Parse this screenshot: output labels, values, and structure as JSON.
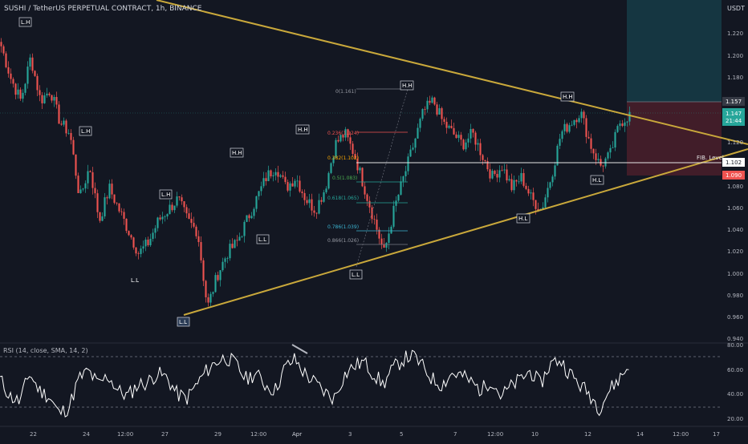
{
  "header": {
    "title": "SUSHI / TetherUS PERPETUAL CONTRACT, 1h, BINANCE",
    "currency": "USDT"
  },
  "price_axis": {
    "ticks": [
      "1.220",
      "1.200",
      "1.180",
      "1.157",
      "1.147",
      "21:44",
      "1.120",
      "1.102",
      "1.090",
      "1.080",
      "1.060",
      "1.040",
      "1.020",
      "1.000",
      "0.980",
      "0.960",
      "0.940"
    ]
  },
  "price_labels": {
    "top": "1.157",
    "current": "1.147",
    "countdown": "21:44",
    "fib_line": "1.102",
    "stop": "1.090"
  },
  "time_axis": {
    "labels": [
      "22",
      "24",
      "12:00",
      "27",
      "29",
      "12:00",
      "Apr",
      "3",
      "5",
      "7",
      "12:00",
      "10",
      "12",
      "14",
      "12:00",
      "17"
    ]
  },
  "pivot_labels": [
    "L.H",
    "L.H",
    "L.H",
    "H.H",
    "H.H",
    "H.H",
    "H.H",
    "L.L",
    "L.L",
    "H.L",
    "L.L",
    "H.L",
    "H.L",
    "L.L"
  ],
  "fib_labels": [
    "0(1.161)",
    "0.236(1.124)",
    "0.382(1.102)",
    "0.5(1.083)",
    "0.618(1.065)",
    "0.786(1.039)",
    "0.866(1.026)"
  ],
  "fib_level_text": "FIB. Level",
  "rsi": {
    "title": "RSI (14, close, SMA, 14, 2)",
    "ticks": [
      "80.00",
      "60.00",
      "40.00",
      "20.00"
    ]
  },
  "colors": {
    "background": "#131722",
    "candle_up": "#26a69a",
    "candle_down": "#ef5350",
    "trendline": "#c9a83b",
    "rsi_line": "#ffffff",
    "target_zone": "#163a45",
    "stop_zone": "#4a1f2a"
  },
  "chart_data": {
    "type": "candlestick",
    "title": "SUSHI / TetherUS PERPETUAL CONTRACT, 1h, BINANCE",
    "ylim": [
      0.94,
      1.23
    ],
    "yticks": [
      0.94,
      0.96,
      0.98,
      1.0,
      1.02,
      1.04,
      1.06,
      1.08,
      1.1,
      1.12,
      1.14,
      1.16,
      1.18,
      1.2,
      1.22
    ],
    "close_path": [
      1.21,
      1.18,
      1.16,
      1.2,
      1.16,
      1.17,
      1.14,
      1.13,
      1.07,
      1.1,
      1.05,
      1.08,
      1.06,
      1.04,
      1.02,
      1.03,
      1.05,
      1.06,
      1.07,
      1.05,
      1.04,
      0.97,
      1.0,
      1.02,
      1.03,
      1.05,
      1.07,
      1.09,
      1.1,
      1.08,
      1.09,
      1.07,
      1.06,
      1.08,
      1.12,
      1.13,
      1.11,
      1.08,
      1.05,
      1.02,
      1.06,
      1.09,
      1.12,
      1.15,
      1.16,
      1.14,
      1.13,
      1.12,
      1.13,
      1.11,
      1.09,
      1.1,
      1.08,
      1.09,
      1.07,
      1.06,
      1.09,
      1.13,
      1.14,
      1.15,
      1.12,
      1.1,
      1.11,
      1.14,
      1.147
    ],
    "fib_levels": [
      {
        "ratio": 0,
        "price": 1.161
      },
      {
        "ratio": 0.236,
        "price": 1.124
      },
      {
        "ratio": 0.382,
        "price": 1.102
      },
      {
        "ratio": 0.5,
        "price": 1.083
      },
      {
        "ratio": 0.618,
        "price": 1.065
      },
      {
        "ratio": 0.786,
        "price": 1.039
      },
      {
        "ratio": 0.866,
        "price": 1.026
      }
    ],
    "rsi_ylim": [
      20,
      85
    ],
    "rsi_levels": [
      70,
      30
    ],
    "rsi_path": [
      55,
      40,
      35,
      60,
      45,
      40,
      25,
      30,
      55,
      62,
      50,
      58,
      45,
      40,
      50,
      52,
      60,
      56,
      42,
      38,
      50,
      62,
      70,
      74,
      68,
      55,
      60,
      50,
      45,
      65,
      72,
      60,
      52,
      44,
      38,
      58,
      66,
      70,
      60,
      50,
      64,
      72,
      76,
      66,
      55,
      50,
      60,
      58,
      52,
      45,
      55,
      40,
      48,
      55,
      62,
      50,
      68,
      72,
      60,
      50,
      42,
      30,
      45,
      55,
      66
    ]
  }
}
